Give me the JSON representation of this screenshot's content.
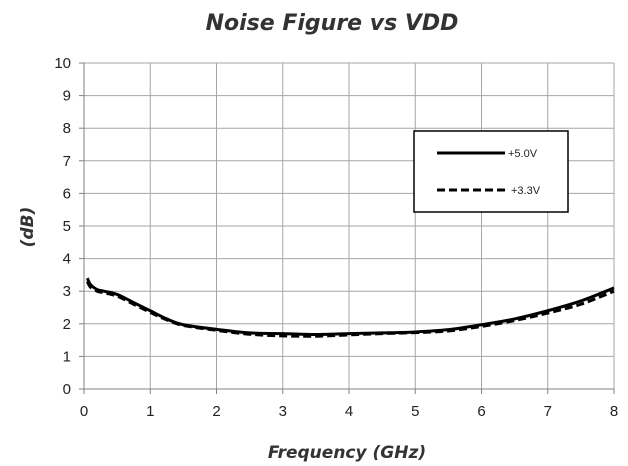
{
  "chart_data": {
    "type": "line",
    "title": "Noise Figure vs VDD",
    "xlabel": "Frequency (GHz)",
    "ylabel": "(dB)",
    "xlim": [
      0,
      8
    ],
    "ylim": [
      0,
      10
    ],
    "x_ticks": [
      "0",
      "1",
      "2",
      "3",
      "4",
      "5",
      "6",
      "7",
      "8"
    ],
    "y_ticks": [
      "0",
      "1",
      "2",
      "3",
      "4",
      "5",
      "6",
      "7",
      "8",
      "9",
      "10"
    ],
    "grid": true,
    "legend_position": "right",
    "series": [
      {
        "name": "+5.0V",
        "style": "solid",
        "color": "#000000",
        "x": [
          0.05,
          0.1,
          0.2,
          0.3,
          0.5,
          0.75,
          1.0,
          1.25,
          1.5,
          2.0,
          2.5,
          3.0,
          3.5,
          4.0,
          4.5,
          5.0,
          5.5,
          6.0,
          6.5,
          7.0,
          7.5,
          8.0
        ],
        "y": [
          3.4,
          3.2,
          3.05,
          3.0,
          2.9,
          2.65,
          2.4,
          2.15,
          1.97,
          1.83,
          1.72,
          1.7,
          1.67,
          1.7,
          1.72,
          1.75,
          1.82,
          1.97,
          2.15,
          2.4,
          2.7,
          3.1
        ]
      },
      {
        "name": "+3.3V",
        "style": "dashed",
        "color": "#000000",
        "x": [
          0.05,
          0.1,
          0.2,
          0.3,
          0.5,
          0.75,
          1.0,
          1.25,
          1.5,
          2.0,
          2.5,
          3.0,
          3.5,
          4.0,
          4.5,
          5.0,
          5.5,
          6.0,
          6.5,
          7.0,
          7.5,
          8.0
        ],
        "y": [
          3.3,
          3.12,
          3.0,
          2.95,
          2.85,
          2.6,
          2.35,
          2.12,
          1.95,
          1.8,
          1.68,
          1.63,
          1.62,
          1.66,
          1.7,
          1.73,
          1.78,
          1.92,
          2.1,
          2.33,
          2.6,
          3.0
        ]
      }
    ]
  }
}
